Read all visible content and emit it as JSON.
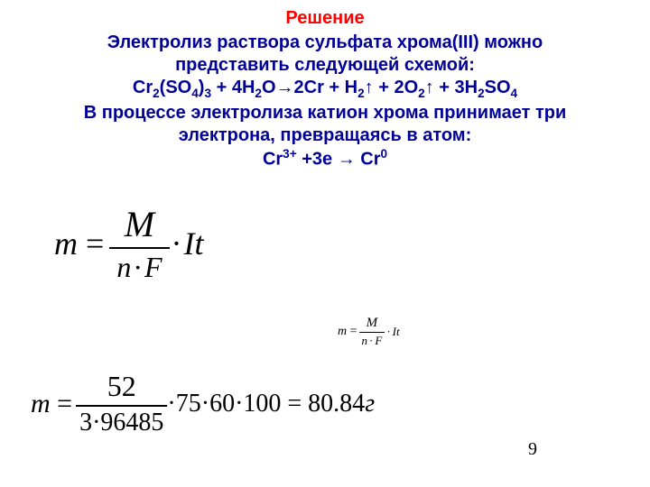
{
  "title": "Решение",
  "lines": {
    "l1": "Электролиз раствора сульфата хрома(III) можно",
    "l2": "представить следующей схемой:",
    "l4a": "В процессе электролиза катион хрома принимает три",
    "l4b": "электрона, превращаясь в атом:"
  },
  "chem_eq": {
    "p1": "Cr",
    "s1": "2",
    "p2": "(SO",
    "s2": "4",
    "p3": ")",
    "s3": "3",
    "p4": " + 4H",
    "s4": "2",
    "p5": "O→2Cr + H",
    "s5": "2",
    "ar1": "↑ + 2O",
    "s6": "2",
    "ar2": "↑ + 3H",
    "s7": "2",
    "p6": "SO",
    "s8": "4"
  },
  "ion_eq": {
    "a": "Cr",
    "sup1": "3+",
    "b": " +3e → Cr",
    "sup2": "0"
  },
  "formula": {
    "M": "M",
    "nF_n": "n",
    "nF_dot": "·",
    "nF_F": "F",
    "m": "m",
    "eq": " = ",
    "It_dot": "·",
    "I": "I",
    "t": "t"
  },
  "numeric": {
    "num": "52",
    "den": "3·96485",
    "rhs": "·75·60·100 = 80.84",
    "unit": "г"
  },
  "page": "9",
  "colors": {
    "title": "#ff0000",
    "body": "#000099",
    "math": "#000000"
  }
}
